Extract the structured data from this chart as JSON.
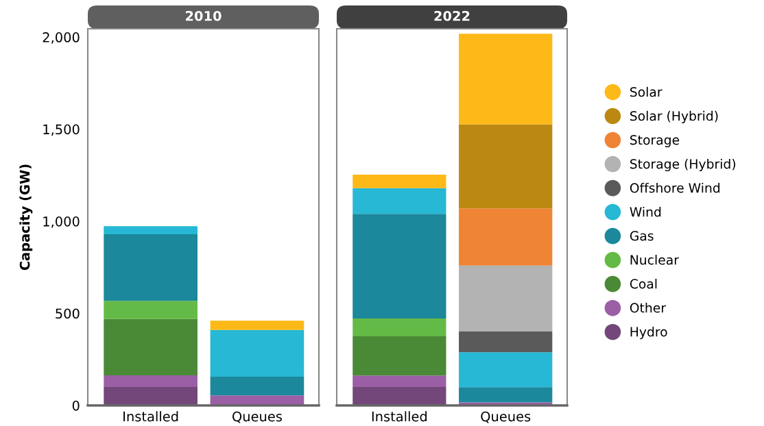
{
  "chart_data": [
    {
      "type": "bar",
      "title": "2010",
      "stacked": true,
      "ylabel": "Capacity (GW)",
      "categories": [
        "Installed",
        "Queues"
      ],
      "ylim": [
        0,
        2045
      ],
      "yticks": [
        0,
        500,
        {
          "value": 1000,
          "label": "1,000"
        },
        {
          "value": 1500,
          "label": "1,500"
        },
        {
          "value": 2000,
          "label": "2,000"
        }
      ],
      "grid": false,
      "series": [
        {
          "color": "#74477b",
          "values": [
            100,
            0
          ]
        },
        {
          "color": "#9b5fa6",
          "values": [
            64,
            55
          ]
        },
        {
          "color": "#4a8a36",
          "values": [
            305,
            0
          ]
        },
        {
          "color": "#64ba46",
          "values": [
            99,
            0
          ]
        },
        {
          "color": "#1b889b",
          "values": [
            362,
            101
          ]
        },
        {
          "color": "#26b8d4",
          "values": [
            43,
            254
          ]
        },
        {
          "color": "#5a5a5a",
          "values": [
            0,
            0
          ]
        },
        {
          "color": "#b3b3b3",
          "values": [
            0,
            0
          ]
        },
        {
          "color": "#ee8434",
          "values": [
            0,
            0
          ]
        },
        {
          "color": "#bb8912",
          "values": [
            0,
            0
          ]
        },
        {
          "color": "#fdb918",
          "values": [
            0,
            50
          ]
        }
      ]
    },
    {
      "type": "bar",
      "title": "2022",
      "stacked": true,
      "categories": [
        "Installed",
        "Queues"
      ],
      "ylim": [
        0,
        2045
      ],
      "tick_labels": "x",
      "grid": false,
      "legend": "right",
      "series": [
        {
          "name": "Hydro",
          "color": "#74477b",
          "values": [
            100,
            0
          ]
        },
        {
          "name": "Other",
          "color": "#9b5fa6",
          "values": [
            63,
            17
          ]
        },
        {
          "name": "Coal",
          "color": "#4a8a36",
          "values": [
            213,
            0
          ]
        },
        {
          "name": "Nuclear",
          "color": "#64ba46",
          "values": [
            96,
            0
          ]
        },
        {
          "name": "Gas",
          "color": "#1b889b",
          "values": [
            568,
            82
          ]
        },
        {
          "name": "Wind",
          "color": "#26b8d4",
          "values": [
            140,
            190
          ]
        },
        {
          "name": "Offshore Wind",
          "color": "#5a5a5a",
          "values": [
            0,
            113
          ]
        },
        {
          "name": "Storage (Hybrid)",
          "color": "#b3b3b3",
          "values": [
            0,
            357
          ]
        },
        {
          "name": "Storage",
          "color": "#ee8434",
          "values": [
            0,
            311
          ]
        },
        {
          "name": "Solar (Hybrid)",
          "color": "#bb8912",
          "values": [
            0,
            456
          ]
        },
        {
          "name": "Solar",
          "color": "#fdb918",
          "values": [
            73,
            492
          ]
        }
      ]
    }
  ]
}
